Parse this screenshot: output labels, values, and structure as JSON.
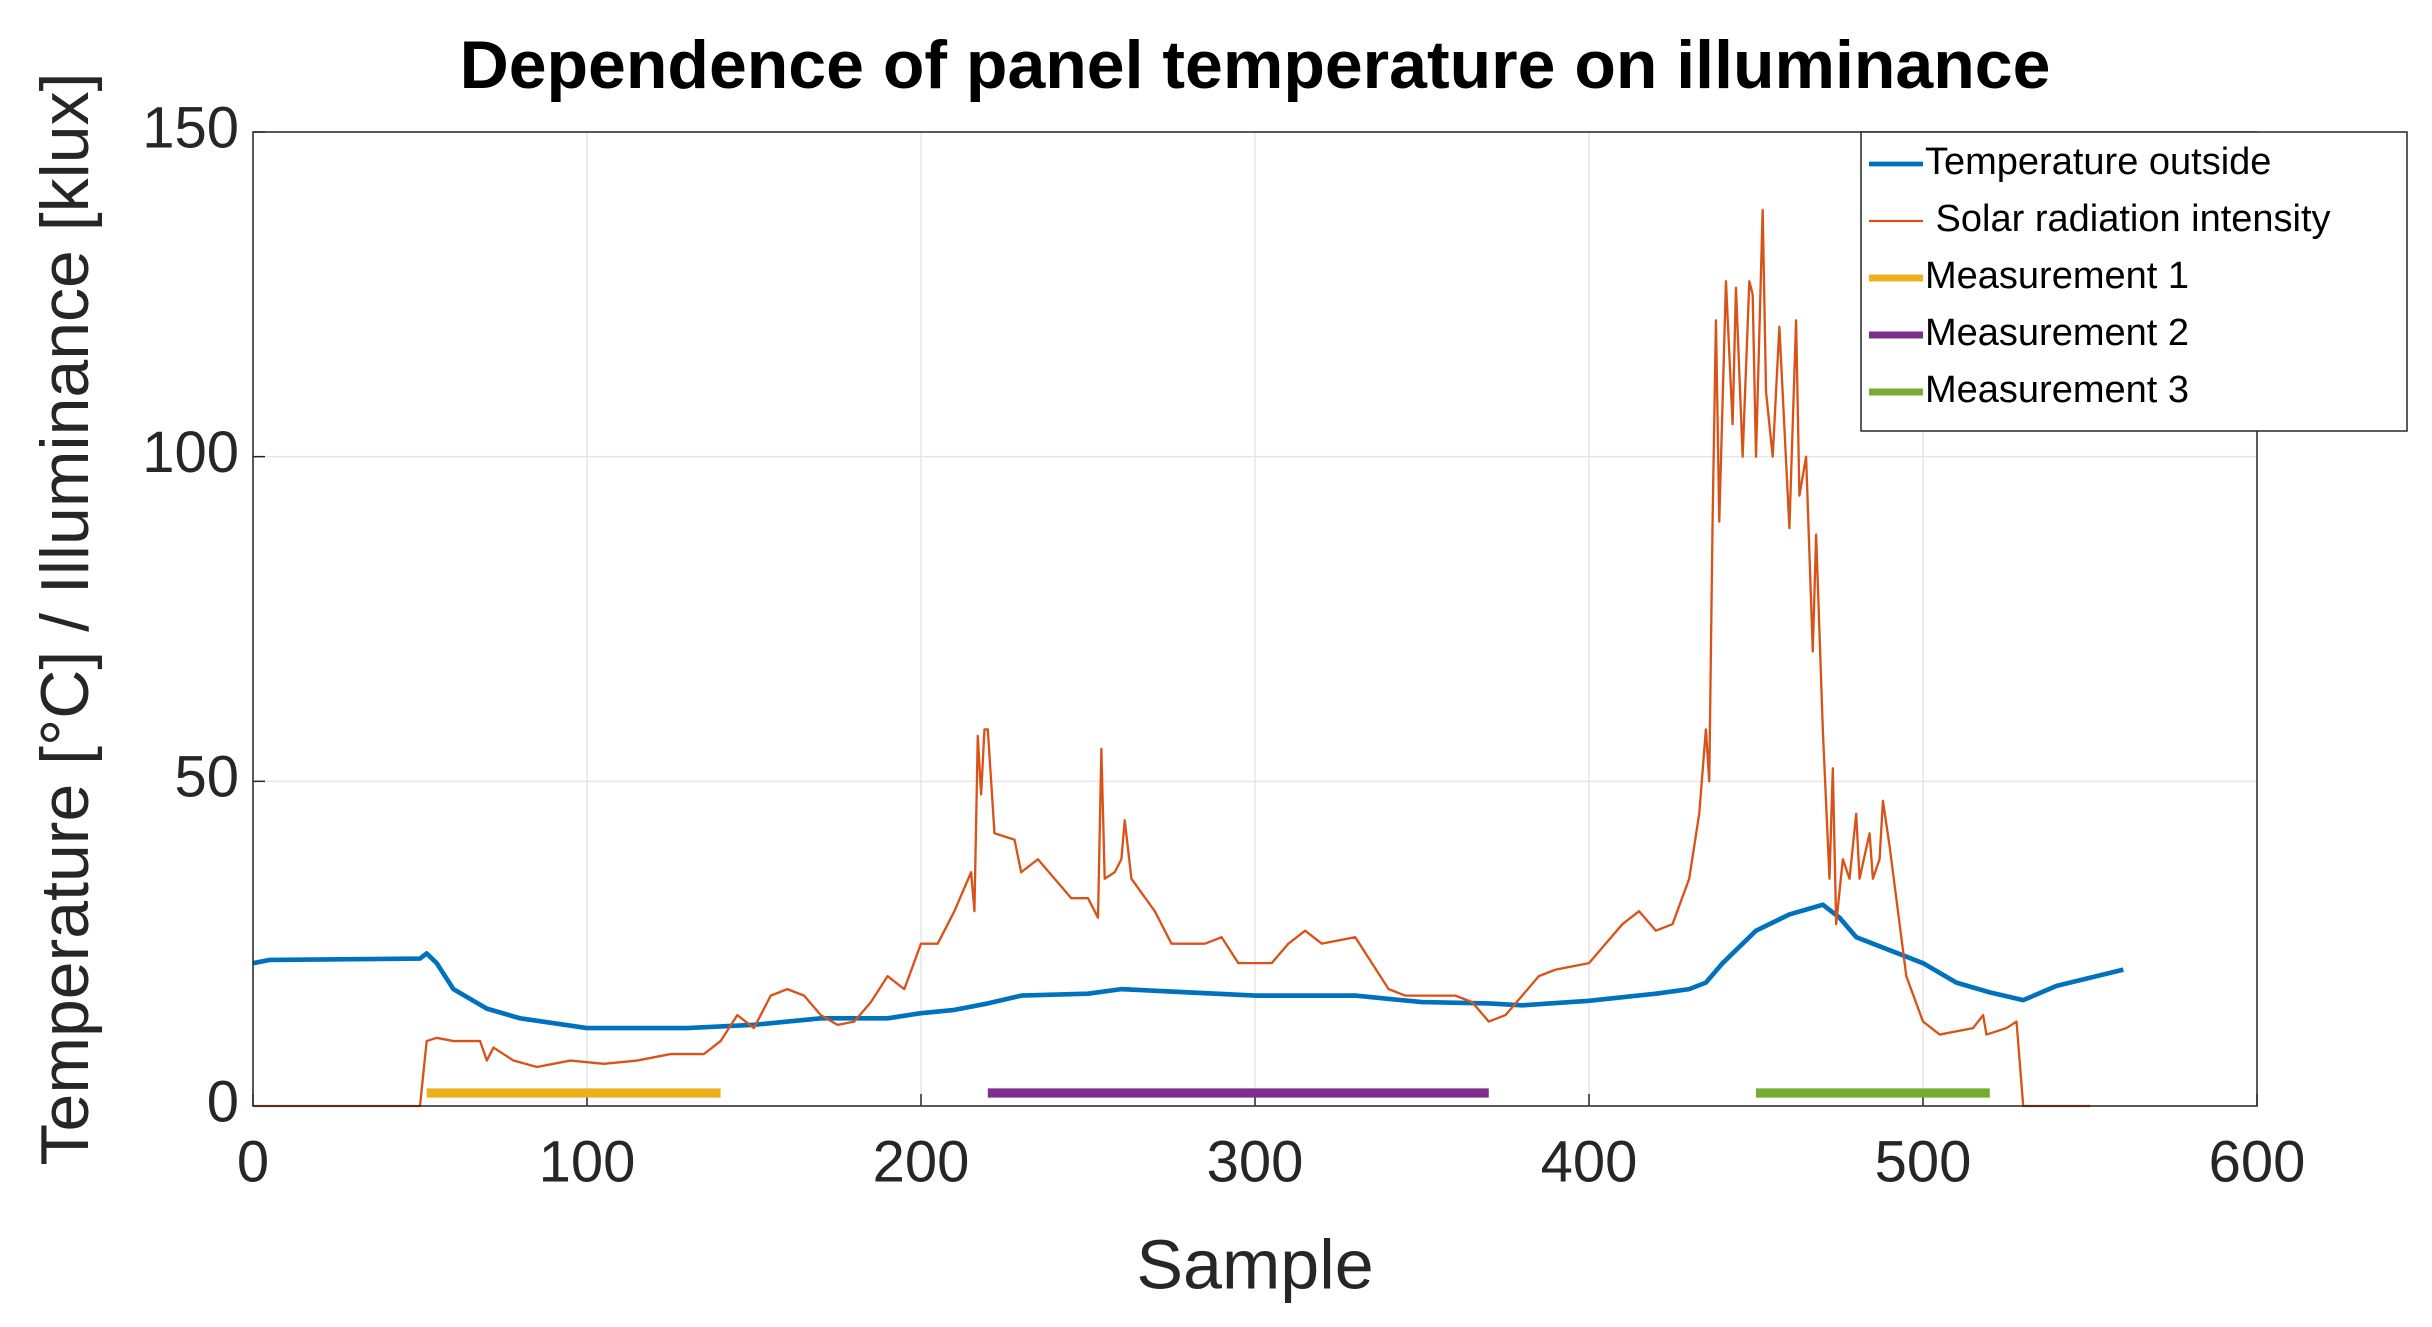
{
  "chart_data": {
    "type": "line",
    "title": "Dependence of panel temperature on illuminance",
    "x_label": "Sample",
    "y_label": "Temperature [°C] / Illuminance [klux]",
    "xlim": [
      0,
      600
    ],
    "xticks": [
      0,
      100,
      200,
      300,
      400,
      500,
      600
    ],
    "ylim": [
      0,
      150
    ],
    "yticks": [
      0,
      50,
      100,
      150
    ],
    "grid": true,
    "legend": "top-right",
    "series": [
      {
        "name": "Temperature outside",
        "color": "#0072bd",
        "width": 3,
        "x": [
          0,
          5,
          50,
          52,
          55,
          60,
          70,
          80,
          100,
          130,
          150,
          170,
          190,
          200,
          210,
          220,
          230,
          250,
          260,
          280,
          300,
          330,
          350,
          370,
          380,
          400,
          420,
          430,
          435,
          440,
          450,
          460,
          470,
          475,
          480,
          490,
          500,
          510,
          520,
          530,
          540,
          560
        ],
        "values": [
          22,
          22.5,
          22.7,
          23.5,
          22,
          18,
          15,
          13.5,
          12,
          12,
          12.5,
          13.5,
          13.5,
          14.3,
          14.8,
          15.8,
          17,
          17.3,
          18,
          17.5,
          17,
          17,
          16,
          15.8,
          15.5,
          16.2,
          17.3,
          18,
          19,
          22,
          27,
          29.5,
          31,
          29,
          26,
          24,
          22,
          19,
          17.5,
          16.3,
          18.5,
          21
        ]
      },
      {
        "name": " Solar radiation intensity",
        "color": "#d95319",
        "width": 1.5,
        "x": [
          0,
          50,
          52,
          55,
          60,
          68,
          70,
          72,
          78,
          85,
          95,
          105,
          115,
          125,
          135,
          140,
          145,
          150,
          155,
          160,
          165,
          170,
          175,
          180,
          185,
          190,
          195,
          200,
          205,
          210,
          215,
          216,
          217,
          218,
          219,
          220,
          221,
          222,
          228,
          230,
          235,
          240,
          245,
          250,
          253,
          254,
          255,
          258,
          260,
          261,
          263,
          270,
          275,
          285,
          290,
          295,
          305,
          310,
          315,
          320,
          330,
          335,
          340,
          345,
          360,
          365,
          370,
          375,
          380,
          385,
          390,
          400,
          405,
          410,
          415,
          420,
          425,
          430,
          433,
          435,
          436,
          437,
          438,
          439,
          441,
          443,
          444,
          446,
          448,
          449,
          450,
          452,
          453,
          455,
          457,
          460,
          462,
          463,
          465,
          467,
          468,
          470,
          472,
          473,
          474,
          476,
          478,
          480,
          481,
          484,
          485,
          487,
          488,
          490,
          495,
          500,
          505,
          515,
          518,
          519,
          525,
          528,
          530,
          550
        ],
        "values": [
          0,
          0,
          10,
          10.5,
          10,
          10,
          7,
          9,
          7,
          6,
          7,
          6.5,
          7,
          8,
          8,
          10,
          14,
          12,
          17,
          18,
          17,
          14,
          12.5,
          13,
          16,
          20,
          18,
          25,
          25,
          30,
          36,
          30,
          57,
          48,
          58,
          58,
          50,
          42,
          41,
          36,
          38,
          35,
          32,
          32,
          29,
          55,
          35,
          36,
          38,
          44,
          35,
          30,
          25,
          25,
          26,
          22,
          22,
          25,
          27,
          25,
          26,
          22,
          18,
          17,
          17,
          16,
          13,
          14,
          17,
          20,
          21,
          22,
          25,
          28,
          30,
          27,
          28,
          35,
          45,
          58,
          50,
          90,
          121,
          90,
          127,
          105,
          126,
          100,
          127,
          125,
          100,
          138,
          110,
          100,
          120,
          89,
          121,
          94,
          100,
          70,
          88,
          58,
          35,
          52,
          28,
          38,
          35,
          45,
          35,
          42,
          35,
          38,
          47,
          40,
          20,
          13,
          11,
          12,
          14,
          11,
          12,
          13,
          0,
          0
        ]
      },
      {
        "name": "Measurement 1",
        "color": "#edb120",
        "width": 6,
        "x": [
          52,
          140
        ],
        "values": [
          2,
          2
        ]
      },
      {
        "name": "Measurement 2",
        "color": "#7e2f8e",
        "width": 6,
        "x": [
          220,
          370
        ],
        "values": [
          2,
          2
        ]
      },
      {
        "name": "Measurement 3",
        "color": "#77ac30",
        "width": 6,
        "x": [
          450,
          520
        ],
        "values": [
          2,
          2
        ]
      }
    ]
  }
}
